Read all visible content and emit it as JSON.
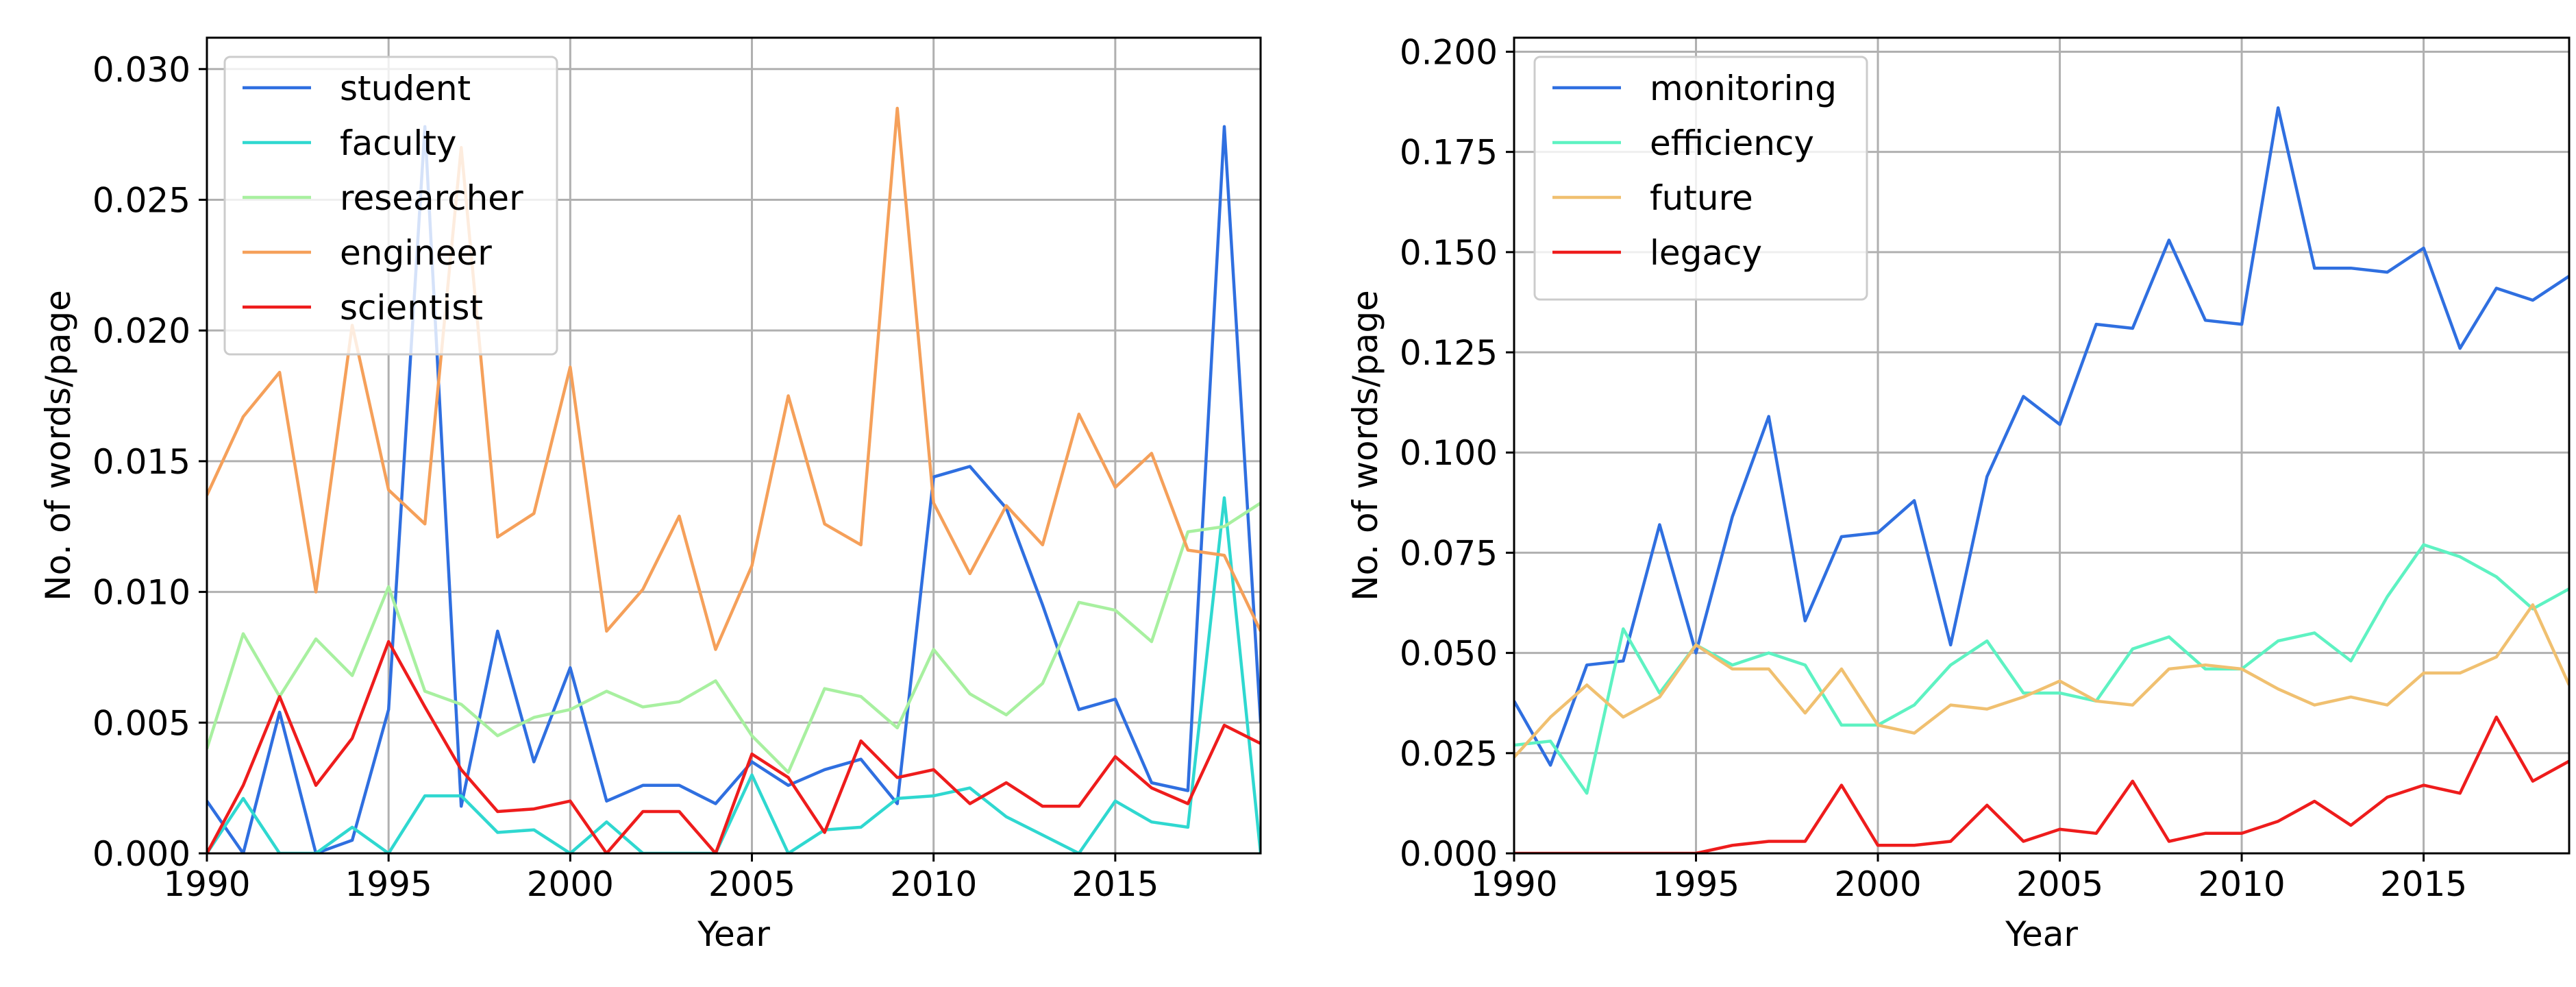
{
  "chart_data": [
    {
      "type": "line",
      "xlabel": "Year",
      "ylabel": "No. of words/page",
      "xlim": [
        1990,
        2019
      ],
      "ylim": [
        0,
        0.0312
      ],
      "xticks": [
        1990,
        1995,
        2000,
        2005,
        2010,
        2015
      ],
      "xtick_labels": [
        "1990",
        "1995",
        "2000",
        "2005",
        "2010",
        "2015"
      ],
      "yticks": [
        0,
        0.005,
        0.01,
        0.015,
        0.02,
        0.025,
        0.03
      ],
      "ytick_labels": [
        "0.000",
        "0.005",
        "0.010",
        "0.015",
        "0.020",
        "0.025",
        "0.030"
      ],
      "grid": true,
      "legend_position": "top-left",
      "x": [
        1990,
        1991,
        1992,
        1993,
        1994,
        1995,
        1996,
        1997,
        1998,
        1999,
        2000,
        2001,
        2002,
        2003,
        2004,
        2005,
        2006,
        2007,
        2008,
        2009,
        2010,
        2011,
        2012,
        2013,
        2014,
        2015,
        2016,
        2017,
        2018,
        2019
      ],
      "series": [
        {
          "name": "student",
          "color": "#2f6fe0",
          "values": [
            0.002,
            0.0,
            0.0054,
            0.0,
            0.0005,
            0.0055,
            0.0278,
            0.0018,
            0.0085,
            0.0035,
            0.0071,
            0.002,
            0.0026,
            0.0026,
            0.0019,
            0.0035,
            0.0026,
            0.0032,
            0.0036,
            0.0019,
            0.0144,
            0.0148,
            0.0132,
            0.0095,
            0.0055,
            0.0059,
            0.0027,
            0.0024,
            0.0278,
            0.005
          ]
        },
        {
          "name": "faculty",
          "color": "#2fd8d0",
          "values": [
            0.0,
            0.0021,
            0.0,
            0.0,
            0.001,
            0.0,
            0.0022,
            0.0022,
            0.0008,
            0.0009,
            0.0,
            0.0012,
            0.0,
            0.0,
            0.0,
            0.003,
            0.0,
            0.0009,
            0.001,
            0.0021,
            0.0022,
            0.0025,
            0.0014,
            0.0007,
            0.0,
            0.002,
            0.0012,
            0.001,
            0.0136,
            0.0
          ]
        },
        {
          "name": "researcher",
          "color": "#a8f0a0",
          "values": [
            0.004,
            0.0084,
            0.006,
            0.0082,
            0.0068,
            0.0102,
            0.0062,
            0.0057,
            0.0045,
            0.0052,
            0.0055,
            0.0062,
            0.0056,
            0.0058,
            0.0066,
            0.0045,
            0.0031,
            0.0063,
            0.006,
            0.0048,
            0.0078,
            0.0061,
            0.0053,
            0.0065,
            0.0096,
            0.0093,
            0.0081,
            0.0123,
            0.0125,
            0.0134
          ]
        },
        {
          "name": "engineer",
          "color": "#f5a05a",
          "values": [
            0.0137,
            0.0167,
            0.0184,
            0.01,
            0.0202,
            0.0139,
            0.0126,
            0.027,
            0.0121,
            0.013,
            0.0186,
            0.0085,
            0.0101,
            0.0129,
            0.0078,
            0.011,
            0.0175,
            0.0126,
            0.0118,
            0.0285,
            0.0134,
            0.0107,
            0.0133,
            0.0118,
            0.0168,
            0.014,
            0.0153,
            0.0116,
            0.0114,
            0.0085
          ]
        },
        {
          "name": "scientist",
          "color": "#ee1c1c",
          "values": [
            0.0,
            0.0026,
            0.006,
            0.0026,
            0.0044,
            0.0081,
            0.0056,
            0.0032,
            0.0016,
            0.0017,
            0.002,
            0.0,
            0.0016,
            0.0016,
            0.0,
            0.0038,
            0.0029,
            0.0008,
            0.0043,
            0.0029,
            0.0032,
            0.0019,
            0.0027,
            0.0018,
            0.0018,
            0.0037,
            0.0025,
            0.0019,
            0.0049,
            0.0042
          ]
        }
      ]
    },
    {
      "type": "line",
      "xlabel": "Year",
      "ylabel": "No. of words/page",
      "xlim": [
        1990,
        2019
      ],
      "ylim": [
        0,
        0.2035
      ],
      "xticks": [
        1990,
        1995,
        2000,
        2005,
        2010,
        2015
      ],
      "xtick_labels": [
        "1990",
        "1995",
        "2000",
        "2005",
        "2010",
        "2015"
      ],
      "yticks": [
        0,
        0.025,
        0.05,
        0.075,
        0.1,
        0.125,
        0.15,
        0.175,
        0.2
      ],
      "ytick_labels": [
        "0.000",
        "0.025",
        "0.050",
        "0.075",
        "0.100",
        "0.125",
        "0.150",
        "0.175",
        "0.200"
      ],
      "grid": true,
      "legend_position": "top-left",
      "x": [
        1990,
        1991,
        1992,
        1993,
        1994,
        1995,
        1996,
        1997,
        1998,
        1999,
        2000,
        2001,
        2002,
        2003,
        2004,
        2005,
        2006,
        2007,
        2008,
        2009,
        2010,
        2011,
        2012,
        2013,
        2014,
        2015,
        2016,
        2017,
        2018,
        2019
      ],
      "series": [
        {
          "name": "monitoring",
          "color": "#2f6fe0",
          "values": [
            0.038,
            0.022,
            0.047,
            0.048,
            0.082,
            0.05,
            0.084,
            0.109,
            0.058,
            0.079,
            0.08,
            0.088,
            0.052,
            0.094,
            0.114,
            0.107,
            0.132,
            0.131,
            0.153,
            0.133,
            0.132,
            0.186,
            0.146,
            0.146,
            0.145,
            0.151,
            0.126,
            0.141,
            0.138,
            0.144
          ]
        },
        {
          "name": "efficiency",
          "color": "#5ef2c2",
          "values": [
            0.027,
            0.028,
            0.015,
            0.056,
            0.04,
            0.052,
            0.047,
            0.05,
            0.047,
            0.032,
            0.032,
            0.037,
            0.047,
            0.053,
            0.04,
            0.04,
            0.038,
            0.051,
            0.054,
            0.046,
            0.046,
            0.053,
            0.055,
            0.048,
            0.064,
            0.077,
            0.074,
            0.069,
            0.061,
            0.066
          ]
        },
        {
          "name": "future",
          "color": "#f0c070",
          "values": [
            0.024,
            0.034,
            0.042,
            0.034,
            0.039,
            0.052,
            0.046,
            0.046,
            0.035,
            0.046,
            0.032,
            0.03,
            0.037,
            0.036,
            0.039,
            0.043,
            0.038,
            0.037,
            0.046,
            0.047,
            0.046,
            0.041,
            0.037,
            0.039,
            0.037,
            0.045,
            0.045,
            0.049,
            0.062,
            0.042
          ]
        },
        {
          "name": "legacy",
          "color": "#ee1c1c",
          "values": [
            0.0,
            0.0,
            0.0,
            0.0,
            0.0,
            0.0,
            0.002,
            0.003,
            0.003,
            0.017,
            0.002,
            0.002,
            0.003,
            0.012,
            0.003,
            0.006,
            0.005,
            0.018,
            0.003,
            0.005,
            0.005,
            0.008,
            0.013,
            0.007,
            0.014,
            0.017,
            0.015,
            0.034,
            0.018,
            0.023
          ]
        }
      ]
    }
  ]
}
